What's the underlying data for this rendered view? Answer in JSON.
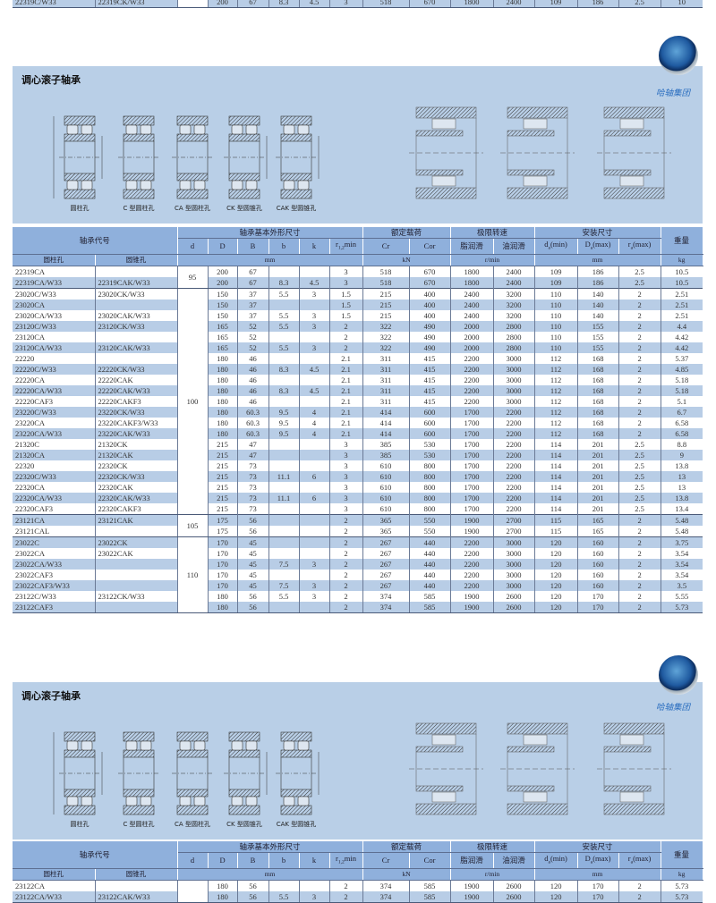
{
  "colors": {
    "panel": "#b9cfe7",
    "header": "#8fb0dc",
    "stripe": "#b8cde6",
    "logo_text": "#2c6fc0"
  },
  "top_partial_row": {
    "cells": [
      "22319C/W33",
      "22319CK/W33",
      "",
      "200",
      "67",
      "8.3",
      "4.5",
      "3",
      "518",
      "670",
      "1800",
      "2400",
      "109",
      "186",
      "2.5",
      "10"
    ]
  },
  "header": {
    "group": [
      "轴承代号",
      "轴承基本外形尺寸",
      "额定载荷",
      "极限转速",
      "安装尺寸",
      "重量"
    ],
    "sub": [
      "d",
      "D",
      "B",
      "b",
      "k",
      {
        "main": "r",
        "sub": "1,2",
        "suffix": "min"
      },
      "Cr",
      "Cor",
      "脂润滑",
      "油润滑",
      {
        "main": "d",
        "sub": "a",
        "suffix": "(min)"
      },
      {
        "main": "D",
        "sub": "a",
        "suffix": "(max)"
      },
      {
        "main": "r",
        "sub": "a",
        "suffix": "(max)"
      }
    ],
    "units": [
      "圆柱孔",
      "圆锥孔",
      "mm",
      "kN",
      "r/min",
      "mm",
      "kg"
    ]
  },
  "sections": [
    {
      "title": "调心滚子轴承",
      "logo_text": "哈轴集团",
      "figure_labels": [
        "圆柱孔",
        "C 型圆柱孔",
        "CA 型圆柱孔",
        "CK 型圆锥孔",
        "CAK 型圆锥孔"
      ],
      "d_groups": [
        {
          "d": "95",
          "rows": 2
        },
        {
          "d": "100",
          "rows": 21
        },
        {
          "d": "105",
          "rows": 2
        },
        {
          "d": "110",
          "rows": 7
        }
      ],
      "rows": [
        [
          "22319CA",
          "",
          "200",
          "67",
          "",
          "",
          "3",
          "518",
          "670",
          "1800",
          "2400",
          "109",
          "186",
          "2.5",
          "10.5"
        ],
        [
          "22319CA/W33",
          "22319CAK/W33",
          "200",
          "67",
          "8.3",
          "4.5",
          "3",
          "518",
          "670",
          "1800",
          "2400",
          "109",
          "186",
          "2.5",
          "10.5"
        ],
        [
          "23020C/W33",
          "23020CK/W33",
          "150",
          "37",
          "5.5",
          "3",
          "1.5",
          "215",
          "400",
          "2400",
          "3200",
          "110",
          "140",
          "2",
          "2.51"
        ],
        [
          "23020CA",
          "",
          "150",
          "37",
          "",
          "",
          "1.5",
          "215",
          "400",
          "2400",
          "3200",
          "110",
          "140",
          "2",
          "2.51"
        ],
        [
          "23020CA/W33",
          "23020CAK/W33",
          "150",
          "37",
          "5.5",
          "3",
          "1.5",
          "215",
          "400",
          "2400",
          "3200",
          "110",
          "140",
          "2",
          "2.51"
        ],
        [
          "23120C/W33",
          "23120CK/W33",
          "165",
          "52",
          "5.5",
          "3",
          "2",
          "322",
          "490",
          "2000",
          "2800",
          "110",
          "155",
          "2",
          "4.4"
        ],
        [
          "23120CA",
          "",
          "165",
          "52",
          "",
          "",
          "2",
          "322",
          "490",
          "2000",
          "2800",
          "110",
          "155",
          "2",
          "4.42"
        ],
        [
          "23120CA/W33",
          "23120CAK/W33",
          "165",
          "52",
          "5.5",
          "3",
          "2",
          "322",
          "490",
          "2000",
          "2800",
          "110",
          "155",
          "2",
          "4.42"
        ],
        [
          "22220",
          "",
          "180",
          "46",
          "",
          "",
          "2.1",
          "311",
          "415",
          "2200",
          "3000",
          "112",
          "168",
          "2",
          "5.37"
        ],
        [
          "22220C/W33",
          "22220CK/W33",
          "180",
          "46",
          "8.3",
          "4.5",
          "2.1",
          "311",
          "415",
          "2200",
          "3000",
          "112",
          "168",
          "2",
          "4.85"
        ],
        [
          "22220CA",
          "22220CAK",
          "180",
          "46",
          "",
          "",
          "2.1",
          "311",
          "415",
          "2200",
          "3000",
          "112",
          "168",
          "2",
          "5.18"
        ],
        [
          "22220CA/W33",
          "22220CAK/W33",
          "180",
          "46",
          "8.3",
          "4.5",
          "2.1",
          "311",
          "415",
          "2200",
          "3000",
          "112",
          "168",
          "2",
          "5.18"
        ],
        [
          "22220CAF3",
          "22220CAKF3",
          "180",
          "46",
          "",
          "",
          "2.1",
          "311",
          "415",
          "2200",
          "3000",
          "112",
          "168",
          "2",
          "5.1"
        ],
        [
          "23220C/W33",
          "23220CK/W33",
          "180",
          "60.3",
          "9.5",
          "4",
          "2.1",
          "414",
          "600",
          "1700",
          "2200",
          "112",
          "168",
          "2",
          "6.7"
        ],
        [
          "23220CA",
          "23220CAKF3/W33",
          "180",
          "60.3",
          "9.5",
          "4",
          "2.1",
          "414",
          "600",
          "1700",
          "2200",
          "112",
          "168",
          "2",
          "6.58"
        ],
        [
          "23220CA/W33",
          "23220CAK/W33",
          "180",
          "60.3",
          "9.5",
          "4",
          "2.1",
          "414",
          "600",
          "1700",
          "2200",
          "112",
          "168",
          "2",
          "6.58"
        ],
        [
          "21320C",
          "21320CK",
          "215",
          "47",
          "",
          "",
          "3",
          "385",
          "530",
          "1700",
          "2200",
          "114",
          "201",
          "2.5",
          "8.8"
        ],
        [
          "21320CA",
          "21320CAK",
          "215",
          "47",
          "",
          "",
          "3",
          "385",
          "530",
          "1700",
          "2200",
          "114",
          "201",
          "2.5",
          "9"
        ],
        [
          "22320",
          "22320CK",
          "215",
          "73",
          "",
          "",
          "3",
          "610",
          "800",
          "1700",
          "2200",
          "114",
          "201",
          "2.5",
          "13.8"
        ],
        [
          "22320C/W33",
          "22320CK/W33",
          "215",
          "73",
          "11.1",
          "6",
          "3",
          "610",
          "800",
          "1700",
          "2200",
          "114",
          "201",
          "2.5",
          "13"
        ],
        [
          "22320CA",
          "22320CAK",
          "215",
          "73",
          "",
          "",
          "3",
          "610",
          "800",
          "1700",
          "2200",
          "114",
          "201",
          "2.5",
          "13"
        ],
        [
          "22320CA/W33",
          "22320CAK/W33",
          "215",
          "73",
          "11.1",
          "6",
          "3",
          "610",
          "800",
          "1700",
          "2200",
          "114",
          "201",
          "2.5",
          "13.8"
        ],
        [
          "22320CAF3",
          "22320CAKF3",
          "215",
          "73",
          "",
          "",
          "3",
          "610",
          "800",
          "1700",
          "2200",
          "114",
          "201",
          "2.5",
          "13.4"
        ],
        [
          "23121CA",
          "23121CAK",
          "175",
          "56",
          "",
          "",
          "2",
          "365",
          "550",
          "1900",
          "2700",
          "115",
          "165",
          "2",
          "5.48"
        ],
        [
          "23121CAL",
          "",
          "175",
          "56",
          "",
          "",
          "2",
          "365",
          "550",
          "1900",
          "2700",
          "115",
          "165",
          "2",
          "5.48"
        ],
        [
          "23022C",
          "23022CK",
          "170",
          "45",
          "",
          "",
          "2",
          "267",
          "440",
          "2200",
          "3000",
          "120",
          "160",
          "2",
          "3.75"
        ],
        [
          "23022CA",
          "23022CAK",
          "170",
          "45",
          "",
          "",
          "2",
          "267",
          "440",
          "2200",
          "3000",
          "120",
          "160",
          "2",
          "3.54"
        ],
        [
          "23022CA/W33",
          "",
          "170",
          "45",
          "7.5",
          "3",
          "2",
          "267",
          "440",
          "2200",
          "3000",
          "120",
          "160",
          "2",
          "3.54"
        ],
        [
          "23022CAF3",
          "",
          "170",
          "45",
          "",
          "",
          "2",
          "267",
          "440",
          "2200",
          "3000",
          "120",
          "160",
          "2",
          "3.54"
        ],
        [
          "23022CAF3/W33",
          "",
          "170",
          "45",
          "7.5",
          "3",
          "2",
          "267",
          "440",
          "2200",
          "3000",
          "120",
          "160",
          "2",
          "3.5"
        ],
        [
          "23122C/W33",
          "23122CK/W33",
          "180",
          "56",
          "5.5",
          "3",
          "2",
          "374",
          "585",
          "1900",
          "2600",
          "120",
          "170",
          "2",
          "5.55"
        ],
        [
          "23122CAF3",
          "",
          "180",
          "56",
          "",
          "",
          "2",
          "374",
          "585",
          "1900",
          "2600",
          "120",
          "170",
          "2",
          "5.73"
        ]
      ]
    },
    {
      "title": "调心滚子轴承",
      "logo_text": "哈轴集团",
      "figure_labels": [
        "圆柱孔",
        "C 型圆柱孔",
        "CA 型圆柱孔",
        "CK 型圆锥孔",
        "CAK 型圆锥孔"
      ],
      "d_groups": [
        {
          "d": "",
          "rows": 2
        }
      ],
      "rows": [
        [
          "23122CA",
          "",
          "180",
          "56",
          "",
          "",
          "2",
          "374",
          "585",
          "1900",
          "2600",
          "120",
          "170",
          "2",
          "5.73"
        ],
        [
          "23122CA/W33",
          "23122CAK/W33",
          "180",
          "56",
          "5.5",
          "3",
          "2",
          "374",
          "585",
          "1900",
          "2600",
          "120",
          "170",
          "2",
          "5.73"
        ]
      ]
    }
  ]
}
